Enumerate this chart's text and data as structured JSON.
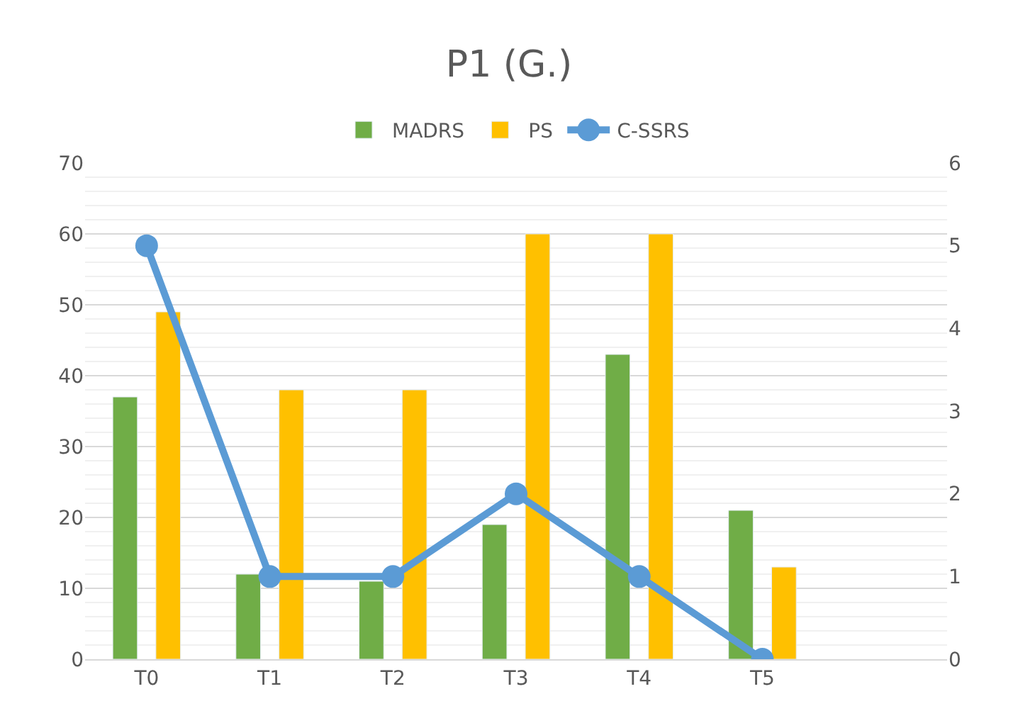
{
  "chart_data": {
    "type": "bar",
    "title": "P1 (G.)",
    "categories": [
      "T0",
      "T1",
      "T2",
      "T3",
      "T4",
      "T5",
      null
    ],
    "series": [
      {
        "name": "MADRS",
        "color": "#70ad47",
        "values": [
          37,
          12,
          11,
          19,
          43,
          21,
          null
        ]
      },
      {
        "name": "PS",
        "color": "#ffc000",
        "values": [
          49,
          38,
          38,
          60,
          60,
          13,
          null
        ]
      },
      {
        "name": "C-SSRS",
        "color": "#5b9bd5",
        "type": "line",
        "axis": "y2",
        "marker": "circle",
        "values": [
          5,
          1,
          1,
          2,
          1,
          0,
          null
        ]
      }
    ],
    "ylim": [
      0,
      70
    ],
    "yticks": [
      0,
      10,
      20,
      30,
      40,
      50,
      60,
      70
    ],
    "y2lim": [
      0,
      6
    ],
    "y2ticks": [
      0,
      1,
      2,
      3,
      4,
      5,
      6
    ],
    "grid": "y",
    "legend": "top"
  }
}
